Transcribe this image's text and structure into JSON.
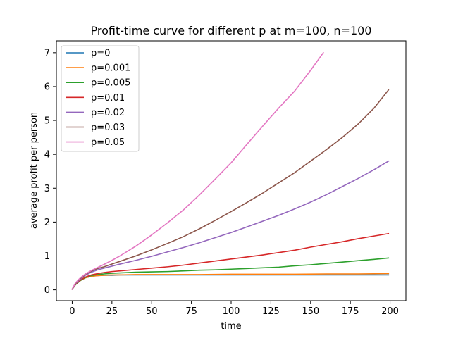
{
  "chart_data": {
    "type": "line",
    "title": "Profit-time curve for different p at m=100, n=100",
    "xlabel": "time",
    "ylabel": "average profit per person",
    "xlim": [
      -9.95,
      209.95
    ],
    "ylim": [
      -0.32,
      7.35
    ],
    "xticks": [
      0,
      25,
      50,
      75,
      100,
      125,
      150,
      175,
      200
    ],
    "yticks": [
      0,
      1,
      2,
      3,
      4,
      5,
      6,
      7
    ],
    "grid": false,
    "legend_position": "top-left",
    "series": [
      {
        "name": "p=0",
        "color": "#1f77b4",
        "x": [
          0,
          2,
          5,
          8,
          12,
          16,
          20,
          25,
          30,
          40,
          60,
          80,
          100,
          120,
          140,
          160,
          180,
          199
        ],
        "y": [
          0.02,
          0.15,
          0.27,
          0.35,
          0.4,
          0.42,
          0.43,
          0.43,
          0.44,
          0.44,
          0.44,
          0.44,
          0.44,
          0.44,
          0.44,
          0.44,
          0.44,
          0.44
        ]
      },
      {
        "name": "p=0.001",
        "color": "#ff7f0e",
        "x": [
          0,
          2,
          5,
          8,
          12,
          16,
          20,
          25,
          30,
          40,
          60,
          80,
          100,
          120,
          140,
          160,
          180,
          199
        ],
        "y": [
          0.02,
          0.15,
          0.27,
          0.35,
          0.4,
          0.42,
          0.43,
          0.44,
          0.44,
          0.45,
          0.45,
          0.45,
          0.46,
          0.46,
          0.46,
          0.47,
          0.47,
          0.48
        ]
      },
      {
        "name": "p=0.005",
        "color": "#2ca02c",
        "x": [
          0,
          2,
          5,
          8,
          12,
          16,
          20,
          25,
          30,
          40,
          50,
          60,
          70,
          80,
          90,
          100,
          110,
          120,
          130,
          140,
          150,
          160,
          170,
          180,
          190,
          199
        ],
        "y": [
          0.02,
          0.15,
          0.27,
          0.36,
          0.42,
          0.45,
          0.47,
          0.49,
          0.5,
          0.52,
          0.53,
          0.54,
          0.56,
          0.58,
          0.59,
          0.61,
          0.63,
          0.65,
          0.67,
          0.71,
          0.74,
          0.78,
          0.82,
          0.86,
          0.9,
          0.94
        ]
      },
      {
        "name": "p=0.01",
        "color": "#d62728",
        "x": [
          0,
          2,
          5,
          8,
          12,
          16,
          20,
          25,
          30,
          40,
          50,
          60,
          70,
          80,
          90,
          100,
          110,
          120,
          130,
          140,
          150,
          160,
          170,
          180,
          190,
          199
        ],
        "y": [
          0.02,
          0.16,
          0.28,
          0.37,
          0.44,
          0.48,
          0.51,
          0.54,
          0.56,
          0.6,
          0.64,
          0.68,
          0.73,
          0.79,
          0.85,
          0.91,
          0.97,
          1.03,
          1.1,
          1.17,
          1.26,
          1.34,
          1.42,
          1.51,
          1.59,
          1.66
        ]
      },
      {
        "name": "p=0.02",
        "color": "#9467bd",
        "x": [
          0,
          2,
          5,
          8,
          12,
          16,
          20,
          25,
          30,
          40,
          50,
          60,
          70,
          80,
          90,
          100,
          110,
          120,
          130,
          140,
          150,
          160,
          170,
          180,
          190,
          199
        ],
        "y": [
          0.02,
          0.17,
          0.31,
          0.42,
          0.52,
          0.59,
          0.64,
          0.7,
          0.76,
          0.87,
          0.99,
          1.12,
          1.25,
          1.39,
          1.54,
          1.69,
          1.86,
          2.03,
          2.2,
          2.39,
          2.59,
          2.81,
          3.05,
          3.29,
          3.55,
          3.8
        ]
      },
      {
        "name": "p=0.03",
        "color": "#8c564b",
        "x": [
          0,
          2,
          5,
          8,
          12,
          16,
          20,
          25,
          30,
          40,
          50,
          60,
          70,
          80,
          90,
          100,
          110,
          120,
          130,
          140,
          150,
          160,
          170,
          180,
          190,
          199
        ],
        "y": [
          0.02,
          0.18,
          0.33,
          0.45,
          0.55,
          0.63,
          0.68,
          0.76,
          0.84,
          1.0,
          1.18,
          1.37,
          1.57,
          1.8,
          2.05,
          2.31,
          2.58,
          2.86,
          3.16,
          3.46,
          3.8,
          4.14,
          4.5,
          4.9,
          5.37,
          5.9
        ]
      },
      {
        "name": "p=0.05",
        "color": "#e377c2",
        "x": [
          0,
          2,
          5,
          8,
          12,
          16,
          20,
          25,
          30,
          40,
          50,
          60,
          70,
          80,
          90,
          100,
          110,
          120,
          130,
          140,
          150,
          158
        ],
        "y": [
          0.02,
          0.2,
          0.35,
          0.46,
          0.57,
          0.66,
          0.75,
          0.87,
          1.0,
          1.29,
          1.62,
          1.98,
          2.36,
          2.8,
          3.27,
          3.75,
          4.3,
          4.84,
          5.37,
          5.87,
          6.48,
          7.0
        ]
      }
    ]
  }
}
